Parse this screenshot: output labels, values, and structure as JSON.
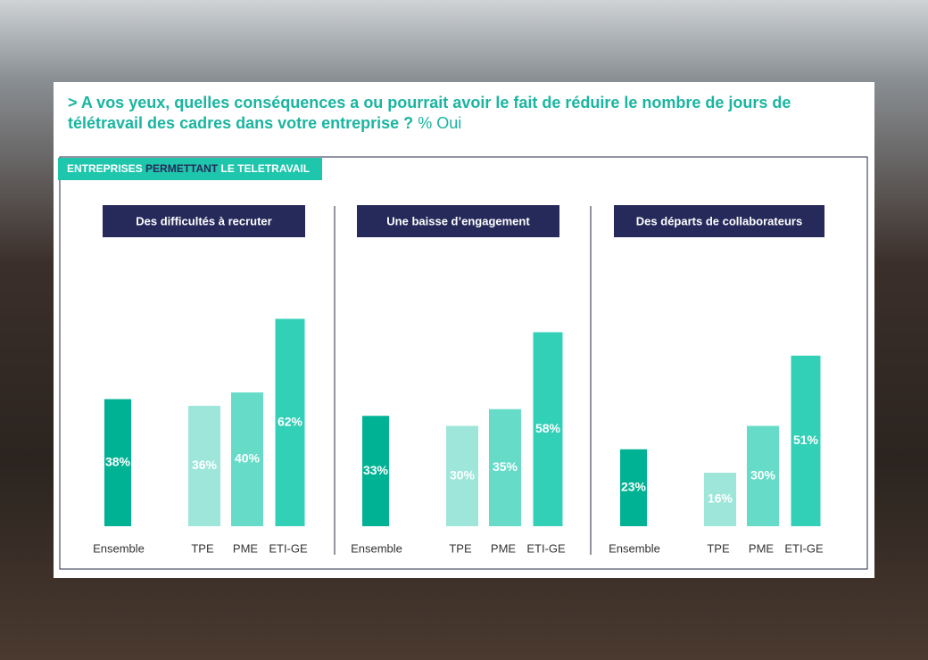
{
  "question": {
    "text": ">  A vos yeux, quelles conséquences a ou pourrait avoir le fait de réduire le nombre de jours de télétravail des cadres dans votre entreprise ?",
    "suffix": "% Oui"
  },
  "banner": {
    "parts": [
      "ENTREPRISES",
      "PERMETTANT",
      "LE TELETRAVAIL"
    ]
  },
  "chart_data": [
    {
      "type": "bar",
      "title": "Des difficultés à recruter",
      "categories": [
        "Ensemble",
        "TPE",
        "PME",
        "ETI-GE"
      ],
      "values": [
        38,
        36,
        40,
        62
      ],
      "value_labels": [
        "38%",
        "36%",
        "40%",
        "62%"
      ],
      "colors": [
        "#00b294",
        "#9ee6da",
        "#66dcc8",
        "#33d0b8"
      ]
    },
    {
      "type": "bar",
      "title": "Une baisse d’engagement",
      "categories": [
        "Ensemble",
        "TPE",
        "PME",
        "ETI-GE"
      ],
      "values": [
        33,
        30,
        35,
        58
      ],
      "value_labels": [
        "33%",
        "30%",
        "35%",
        "58%"
      ],
      "colors": [
        "#00b294",
        "#9ee6da",
        "#66dcc8",
        "#33d0b8"
      ]
    },
    {
      "type": "bar",
      "title": "Des départs de collaborateurs",
      "categories": [
        "Ensemble",
        "TPE",
        "PME",
        "ETI-GE"
      ],
      "values": [
        23,
        16,
        30,
        51
      ],
      "value_labels": [
        "23%",
        "16%",
        "30%",
        "51%"
      ],
      "colors": [
        "#00b294",
        "#9ee6da",
        "#66dcc8",
        "#33d0b8"
      ]
    }
  ]
}
